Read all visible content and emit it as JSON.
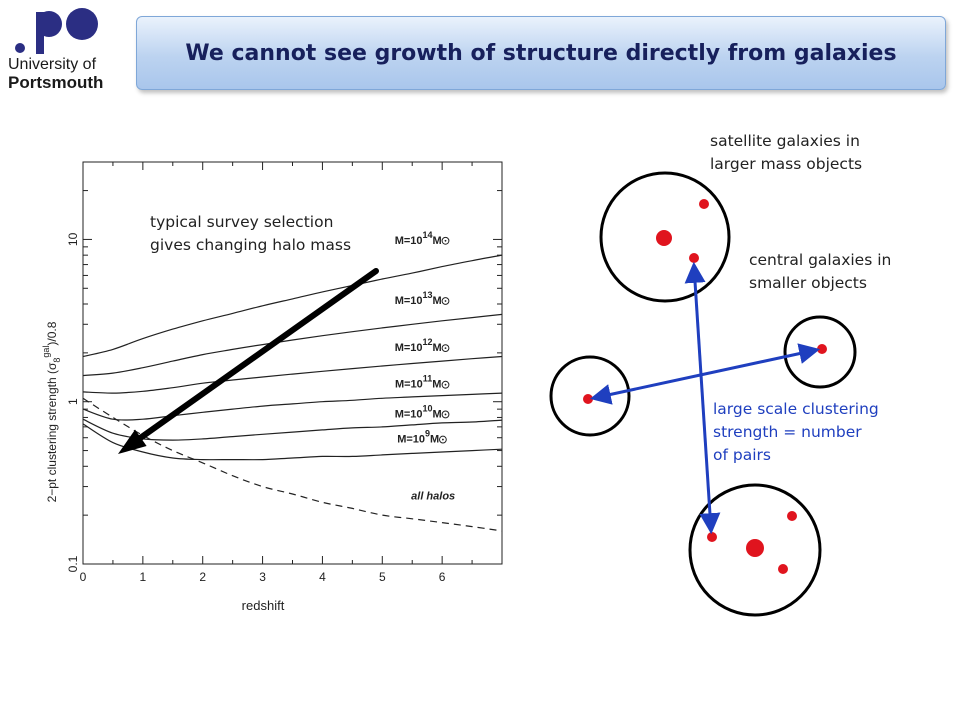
{
  "header": {
    "title": "We cannot see growth of structure directly from galaxies",
    "logo_line1": "University of",
    "logo_line2": "Portsmouth"
  },
  "chart_data": {
    "type": "line",
    "title": "",
    "xlabel": "redshift",
    "ylabel": "2−pt clustering strength (σ",
    "ylabel_sub": "8",
    "ylabel_sup": "gal",
    "ylabel_tail": ")/0.8",
    "xlim": [
      0,
      7
    ],
    "ylim": [
      0.1,
      30
    ],
    "yscale": "log",
    "x_ticks": [
      0,
      1,
      2,
      3,
      4,
      5,
      6
    ],
    "y_ticks": [
      0.1,
      1,
      10
    ],
    "y_tick_labels": [
      "0.1",
      "1",
      "10"
    ],
    "x": [
      0,
      0.5,
      1,
      1.5,
      2,
      2.5,
      3,
      3.5,
      4,
      4.5,
      5,
      5.5,
      6,
      6.5,
      7
    ],
    "series": [
      {
        "label_base": "M=10",
        "label_exp": "14",
        "label_unit": "M",
        "values": [
          1.9,
          2.1,
          2.45,
          2.8,
          3.15,
          3.5,
          3.9,
          4.3,
          4.75,
          5.2,
          5.7,
          6.2,
          6.8,
          7.4,
          8.0
        ]
      },
      {
        "label_base": "M=10",
        "label_exp": "13",
        "label_unit": "M",
        "values": [
          1.45,
          1.5,
          1.62,
          1.78,
          1.95,
          2.1,
          2.25,
          2.4,
          2.55,
          2.7,
          2.85,
          3.0,
          3.15,
          3.3,
          3.45
        ]
      },
      {
        "label_base": "M=10",
        "label_exp": "12",
        "label_unit": "M",
        "values": [
          1.15,
          1.13,
          1.16,
          1.22,
          1.3,
          1.36,
          1.42,
          1.48,
          1.54,
          1.6,
          1.66,
          1.72,
          1.78,
          1.84,
          1.9
        ]
      },
      {
        "label_base": "M=10",
        "label_exp": "11",
        "label_unit": "M",
        "values": [
          0.9,
          0.78,
          0.78,
          0.82,
          0.86,
          0.9,
          0.94,
          0.97,
          1.0,
          1.02,
          1.05,
          1.07,
          1.09,
          1.11,
          1.13
        ]
      },
      {
        "label_base": "M=10",
        "label_exp": "10",
        "label_unit": "M",
        "values": [
          0.78,
          0.64,
          0.59,
          0.58,
          0.59,
          0.61,
          0.63,
          0.65,
          0.67,
          0.69,
          0.7,
          0.72,
          0.74,
          0.75,
          0.77
        ]
      },
      {
        "label_base": "M=10",
        "label_exp": "9",
        "label_unit": "M",
        "values": [
          0.73,
          0.56,
          0.49,
          0.45,
          0.44,
          0.44,
          0.44,
          0.45,
          0.46,
          0.46,
          0.47,
          0.48,
          0.49,
          0.5,
          0.51
        ]
      },
      {
        "label": "all halos",
        "dashed": true,
        "values": [
          1.05,
          0.8,
          0.62,
          0.5,
          0.42,
          0.35,
          0.3,
          0.27,
          0.24,
          0.22,
          0.2,
          0.19,
          0.18,
          0.17,
          0.16
        ]
      }
    ]
  },
  "annotations": {
    "survey_note": [
      "typical survey selection",
      "gives changing halo mass"
    ],
    "satellite_note": [
      "satellite galaxies in",
      "larger mass objects"
    ],
    "central_note": [
      "central galaxies in",
      "smaller objects"
    ],
    "clustering_note": [
      "large scale clustering",
      "strength = number",
      "of pairs"
    ],
    "arrow_color": "#000000",
    "pair_arrow_color": "#1f3fbf",
    "galaxy_color": "#e0141e"
  }
}
